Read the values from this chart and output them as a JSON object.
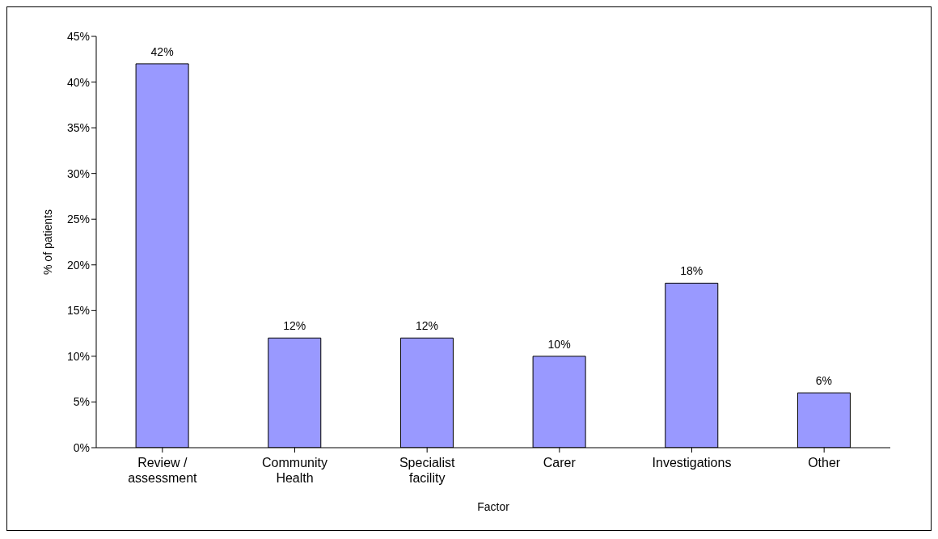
{
  "chart_data": {
    "type": "bar",
    "xlabel": "Factor",
    "ylabel": "% of patients",
    "categories": [
      "Review / assessment",
      "Community Health",
      "Specialist facility",
      "Carer",
      "Investigations",
      "Other"
    ],
    "values": [
      42,
      12,
      12,
      10,
      18,
      6
    ],
    "value_labels": [
      "42%",
      "12%",
      "12%",
      "10%",
      "18%",
      "6%"
    ],
    "color": "#9999ff",
    "ylim": [
      0,
      45
    ],
    "yticks": [
      {
        "value": 0,
        "label": "0%"
      },
      {
        "value": 5,
        "label": "5%"
      },
      {
        "value": 10,
        "label": "10%"
      },
      {
        "value": 15,
        "label": "15%"
      },
      {
        "value": 20,
        "label": "20%"
      },
      {
        "value": 25,
        "label": "25%"
      },
      {
        "value": 30,
        "label": "30%"
      },
      {
        "value": 35,
        "label": "35%"
      },
      {
        "value": 40,
        "label": "40%"
      },
      {
        "value": 45,
        "label": "45%"
      }
    ],
    "grid": false,
    "legend": false
  }
}
